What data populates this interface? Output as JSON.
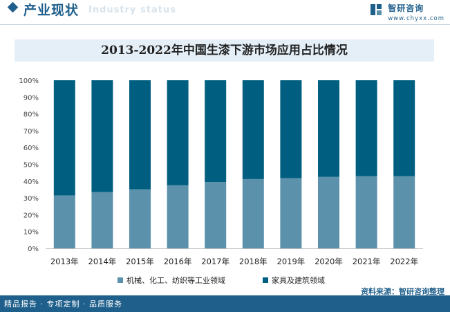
{
  "header": {
    "title": "产业现状",
    "watermark_text": "Industry status",
    "brand_name": "智研咨询",
    "brand_url": "www.chyxx.com"
  },
  "colors": {
    "series_1": "#5b91ab",
    "series_2": "#005f80",
    "brand": "#1f5f8b"
  },
  "chart_data": {
    "type": "bar",
    "stacked": true,
    "normalized": true,
    "title": "2013-2022年中国生漆下游市场应用占比情况",
    "xlabel": "",
    "ylabel": "",
    "ylim": [
      0,
      100
    ],
    "y_ticks": [
      "0%",
      "10%",
      "20%",
      "30%",
      "40%",
      "50%",
      "60%",
      "70%",
      "80%",
      "90%",
      "100%"
    ],
    "categories": [
      "2013年",
      "2014年",
      "2015年",
      "2016年",
      "2017年",
      "2018年",
      "2019年",
      "2020年",
      "2021年",
      "2022年"
    ],
    "series": [
      {
        "name": "机械、化工、纺织等工业领域",
        "values": [
          31.5,
          33.5,
          35.2,
          37.5,
          39.5,
          41.2,
          41.8,
          42.5,
          43.0,
          43.0
        ]
      },
      {
        "name": "家具及建筑领域",
        "values": [
          68.5,
          66.5,
          64.8,
          62.5,
          60.5,
          58.8,
          58.2,
          57.5,
          57.0,
          57.0
        ]
      }
    ],
    "legend_position": "bottom",
    "grid": false
  },
  "source": "资料来源：智研咨询整理",
  "footer": {
    "left_text": "精品报告 · 专项定制 · 品质服务"
  }
}
